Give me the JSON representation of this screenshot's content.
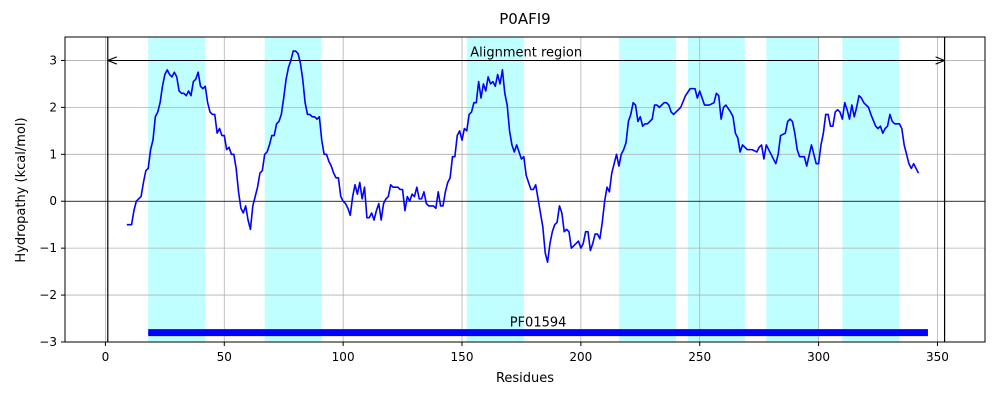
{
  "chart_data": {
    "type": "line",
    "title": "P0AFI9",
    "x_label": "Residues",
    "y_label": "Hydropathy (kcal/mol)",
    "color": "#0000ff",
    "grid": true,
    "xlim": [
      -17,
      370
    ],
    "ylim": [
      -3,
      3.5
    ],
    "xticks": [
      0,
      50,
      100,
      150,
      200,
      250,
      300,
      350
    ],
    "yticks": [
      {
        "value": -3,
        "label": "−3"
      },
      {
        "value": -2,
        "label": "−2"
      },
      {
        "value": -1,
        "label": "−1"
      },
      0,
      1,
      2,
      3
    ],
    "hline": 0,
    "regions": [
      {
        "start": 18,
        "end": 42
      },
      {
        "start": 67,
        "end": 91
      },
      {
        "start": 152,
        "end": 176
      },
      {
        "start": 216,
        "end": 240
      },
      {
        "start": 245,
        "end": 269
      },
      {
        "start": 278,
        "end": 300
      },
      {
        "start": 310,
        "end": 334
      }
    ],
    "region_color": "#c0ffff",
    "alignment": {
      "label": "Alignment region",
      "start": 1,
      "end": 353,
      "y": 3
    },
    "domain": {
      "label": "PF01594",
      "start": 18,
      "end": 346,
      "y": -2.8,
      "color": "#0000ff"
    },
    "x": [
      9,
      11,
      12,
      13,
      15,
      16,
      17,
      18,
      19,
      20,
      21,
      22,
      23,
      24,
      25,
      26,
      27,
      28,
      29,
      30,
      31,
      32,
      33,
      34,
      35,
      36,
      37,
      38,
      39,
      40,
      41,
      42,
      43,
      44,
      45,
      46,
      47,
      48,
      49,
      50,
      51,
      52,
      53,
      54,
      55,
      56,
      57,
      58,
      59,
      60,
      61,
      62,
      64,
      65,
      66,
      67,
      68,
      69,
      70,
      71,
      72,
      73,
      74,
      75,
      76,
      77,
      78,
      79,
      80,
      81,
      82,
      83,
      84,
      85,
      86,
      87,
      88,
      89,
      90,
      91,
      92,
      93,
      94,
      95,
      96,
      97,
      98,
      99,
      100,
      101,
      102,
      103,
      104,
      105,
      106,
      107,
      108,
      109,
      110,
      111,
      112,
      113,
      114,
      115,
      116,
      117,
      118,
      119,
      120,
      121,
      122,
      123,
      124,
      125,
      126,
      127,
      128,
      129,
      130,
      131,
      132,
      133,
      134,
      135,
      136,
      137,
      138,
      139,
      140,
      141,
      142,
      143,
      144,
      145,
      146,
      147,
      148,
      149,
      150,
      151,
      152,
      153,
      154,
      155,
      156,
      157,
      158,
      159,
      160,
      161,
      162,
      163,
      164,
      165,
      166,
      167,
      168,
      169,
      170,
      171,
      172,
      173,
      174,
      175,
      176,
      177,
      178,
      179,
      180,
      181,
      182,
      183,
      184,
      185,
      186,
      187,
      188,
      189,
      190,
      191,
      192,
      193,
      194,
      195,
      196,
      197,
      198,
      199,
      200,
      201,
      202,
      203,
      204,
      205,
      206,
      207,
      208,
      209,
      210,
      211,
      212,
      213,
      214,
      215,
      216,
      217,
      218,
      219,
      220,
      221,
      222,
      223,
      224,
      225,
      226,
      227,
      228,
      229,
      230,
      231,
      232,
      233,
      234,
      235,
      236,
      237,
      238,
      239,
      240,
      242,
      244,
      246,
      248,
      249,
      250,
      252,
      254,
      256,
      257,
      258,
      259,
      260,
      261,
      263,
      264,
      265,
      266,
      267,
      268,
      270,
      272,
      274,
      275,
      276,
      277,
      278,
      280,
      282,
      283,
      284,
      286,
      287,
      288,
      289,
      290,
      291,
      292,
      294,
      295,
      297,
      298,
      299,
      300,
      301,
      302,
      303,
      304,
      305,
      306,
      307,
      308,
      309,
      310,
      311,
      312,
      313,
      314,
      315,
      316,
      317,
      318,
      319,
      321,
      322,
      324,
      325,
      326,
      327,
      328,
      329,
      330,
      331,
      332,
      334,
      335,
      336,
      337,
      338,
      339,
      340,
      342
    ],
    "values": [
      -0.5,
      -0.5,
      -0.2,
      0,
      0.1,
      0.4,
      0.65,
      0.7,
      1.1,
      1.3,
      1.8,
      1.9,
      2.1,
      2.45,
      2.7,
      2.8,
      2.7,
      2.65,
      2.75,
      2.65,
      2.35,
      2.3,
      2.3,
      2.25,
      2.35,
      2.25,
      2.55,
      2.6,
      2.75,
      2.45,
      2.4,
      2.45,
      2.1,
      1.9,
      1.85,
      1.85,
      1.45,
      1.55,
      1.4,
      1.4,
      1.1,
      1.15,
      1.0,
      1.0,
      0.7,
      0.2,
      -0.15,
      -0.25,
      -0.1,
      -0.4,
      -0.6,
      -0.1,
      0.3,
      0.6,
      0.65,
      1.0,
      1.05,
      1.2,
      1.4,
      1.4,
      1.65,
      1.7,
      1.85,
      2.2,
      2.6,
      2.85,
      3.0,
      3.2,
      3.2,
      3.15,
      2.95,
      2.6,
      2.1,
      1.85,
      1.85,
      1.8,
      1.8,
      1.75,
      1.8,
      1.3,
      1.0,
      1.0,
      0.85,
      0.75,
      0.6,
      0.5,
      0.5,
      0.1,
      0.0,
      -0.05,
      -0.15,
      -0.3,
      0.1,
      0.35,
      0.15,
      0.4,
      0.05,
      0.3,
      -0.35,
      -0.35,
      -0.25,
      -0.4,
      -0.2,
      -0.05,
      -0.4,
      -0.05,
      0.05,
      0.1,
      0.35,
      0.3,
      0.3,
      0.3,
      0.25,
      0.25,
      -0.2,
      0.1,
      0.0,
      0.15,
      0.1,
      0.3,
      0.05,
      0.05,
      0.2,
      -0.05,
      -0.1,
      -0.1,
      -0.1,
      -0.15,
      0.2,
      -0.1,
      -0.1,
      0.2,
      0.4,
      0.5,
      0.95,
      0.95,
      1.4,
      1.5,
      1.3,
      1.55,
      1.5,
      1.85,
      1.9,
      2.1,
      2.1,
      2.55,
      2.2,
      2.5,
      2.35,
      2.65,
      2.5,
      2.55,
      2.45,
      2.7,
      2.5,
      2.8,
      2.3,
      2.05,
      1.5,
      1.2,
      1.05,
      1.2,
      1.05,
      0.9,
      0.95,
      0.55,
      0.4,
      0.25,
      0.25,
      0.35,
      0.05,
      -0.25,
      -0.55,
      -1.1,
      -1.3,
      -0.9,
      -0.65,
      -0.5,
      -0.45,
      -0.1,
      -0.25,
      -0.65,
      -0.6,
      -0.65,
      -1.0,
      -0.95,
      -0.9,
      -0.85,
      -1.0,
      -0.9,
      -0.65,
      -0.65,
      -1.05,
      -0.9,
      -0.7,
      -0.7,
      -0.8,
      -0.45,
      0.0,
      0.3,
      0.2,
      0.6,
      0.8,
      1.0,
      0.75,
      1.0,
      1.1,
      1.25,
      1.7,
      1.85,
      2.1,
      2.05,
      1.7,
      1.8,
      1.6,
      1.65,
      1.65,
      1.7,
      1.75,
      2.05,
      2.05,
      2.0,
      2.05,
      2.1,
      2.1,
      2.05,
      1.9,
      1.85,
      1.9,
      2.0,
      2.25,
      2.4,
      2.4,
      2.2,
      2.35,
      2.05,
      2.05,
      2.1,
      2.3,
      2.25,
      1.75,
      2.0,
      2.05,
      1.9,
      1.8,
      1.45,
      1.35,
      1.05,
      1.2,
      1.1,
      1.1,
      1.05,
      1.15,
      1.2,
      0.9,
      1.2,
      1.0,
      0.8,
      1.0,
      1.4,
      1.45,
      1.7,
      1.75,
      1.7,
      1.45,
      1.1,
      0.95,
      0.95,
      0.75,
      1.2,
      1.0,
      0.8,
      0.8,
      1.2,
      1.45,
      1.85,
      1.85,
      1.6,
      1.6,
      1.9,
      1.95,
      1.9,
      1.75,
      2.1,
      1.95,
      1.75,
      2.05,
      1.8,
      2.0,
      2.25,
      2.2,
      2.1,
      2.0,
      1.85,
      1.6,
      1.55,
      1.6,
      1.45,
      1.55,
      1.6,
      1.85,
      1.7,
      1.65,
      1.65,
      1.55,
      1.2,
      1.0,
      0.8,
      0.7,
      0.8,
      0.6
    ]
  }
}
